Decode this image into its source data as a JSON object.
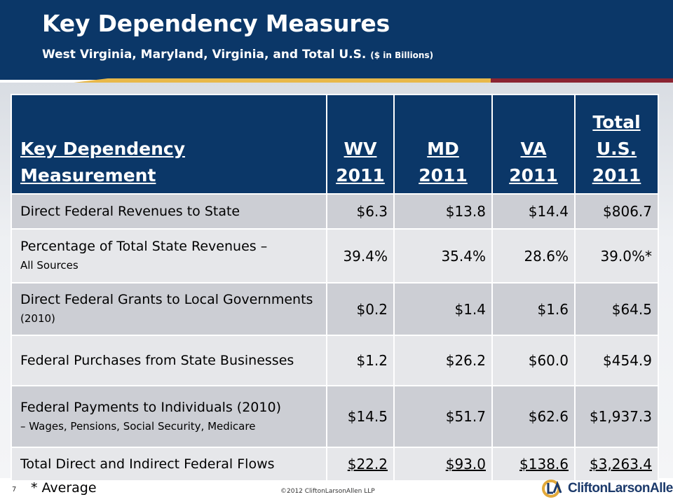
{
  "title": "Key Dependency Measures",
  "subtitle": "West Virginia, Maryland, Virginia, and Total U.S.",
  "subtitle_unit": "($ in Billions)",
  "table": {
    "headers": {
      "measurement_line1": "Key Dependency",
      "measurement_line2": "Measurement",
      "wv_line1": "WV",
      "wv_line2": "2011",
      "md_line1": "MD",
      "md_line2": "2011",
      "va_line1": "VA",
      "va_line2": "2011",
      "us_line1": "Total",
      "us_line2": "U.S.",
      "us_line3": "2011"
    },
    "rows": [
      {
        "label": "Direct Federal Revenues to State",
        "sub": "",
        "wv": "$6.3",
        "md": "$13.8",
        "va": "$14.4",
        "us": "$806.7"
      },
      {
        "label": "Percentage of Total State Revenues –",
        "sub": "All Sources",
        "wv": "39.4%",
        "md": "35.4%",
        "va": "28.6%",
        "us": "39.0%*"
      },
      {
        "label": "Direct Federal Grants to Local Governments",
        "sub": "(2010)",
        "wv": "$0.2",
        "md": "$1.4",
        "va": "$1.6",
        "us": "$64.5"
      },
      {
        "label": "Federal Purchases from State Businesses",
        "sub": "",
        "wv": "$1.2",
        "md": "$26.2",
        "va": "$60.0",
        "us": "$454.9"
      },
      {
        "label": "Federal Payments to Individuals (2010)",
        "sub": "– Wages, Pensions, Social Security, Medicare",
        "wv": "$14.5",
        "md": "$51.7",
        "va": "$62.6",
        "us": "$1,937.3"
      },
      {
        "label": "Total Direct and Indirect Federal Flows",
        "sub": "",
        "wv": "$22.2",
        "md": "$93.0",
        "va": "$138.6",
        "us": "$3,263.4"
      }
    ]
  },
  "footnote": "*  Average",
  "page_number": "7",
  "copyright": "©2012 CliftonLarsonAllen LLP",
  "logo_text": "CliftonLarsonAllen",
  "colors": {
    "header_blue": "#0b3768",
    "accent_gold": "#e8b84a",
    "accent_red": "#8b2432",
    "row_dark": "#ccced4",
    "row_light": "#e6e7ea"
  }
}
